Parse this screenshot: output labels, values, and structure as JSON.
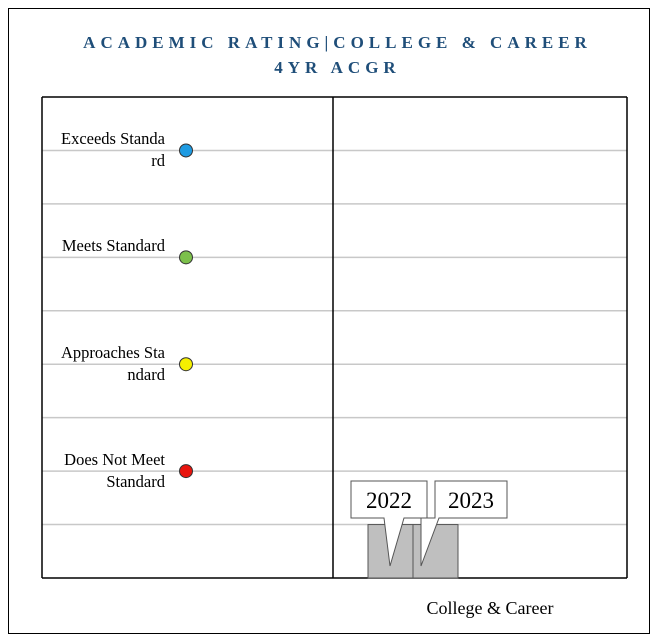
{
  "chart_data": {
    "type": "bar",
    "title": "ACADEMIC RATING|COLLEGE & CAREER 4YR ACGR",
    "categories": [
      "College & Career"
    ],
    "series": [
      {
        "name": "2022",
        "values": [
          1
        ]
      },
      {
        "name": "2023",
        "values": [
          1
        ]
      }
    ],
    "color": "#bfbfbf",
    "ylim": [
      0,
      9
    ],
    "yticks": [
      0,
      1,
      2,
      3,
      4,
      5,
      6,
      7,
      8,
      9
    ],
    "grid": true,
    "levels": [
      {
        "value": 8,
        "label": "Exceeds Standard",
        "color": "#1e9be2"
      },
      {
        "value": 6,
        "label": "Meets Standard",
        "color": "#7cc04b"
      },
      {
        "value": 4,
        "label": "Approaches Standard",
        "color": "#f5f000"
      },
      {
        "value": 2,
        "label": "Does Not Meet Standard",
        "color": "#e8140e"
      }
    ]
  }
}
